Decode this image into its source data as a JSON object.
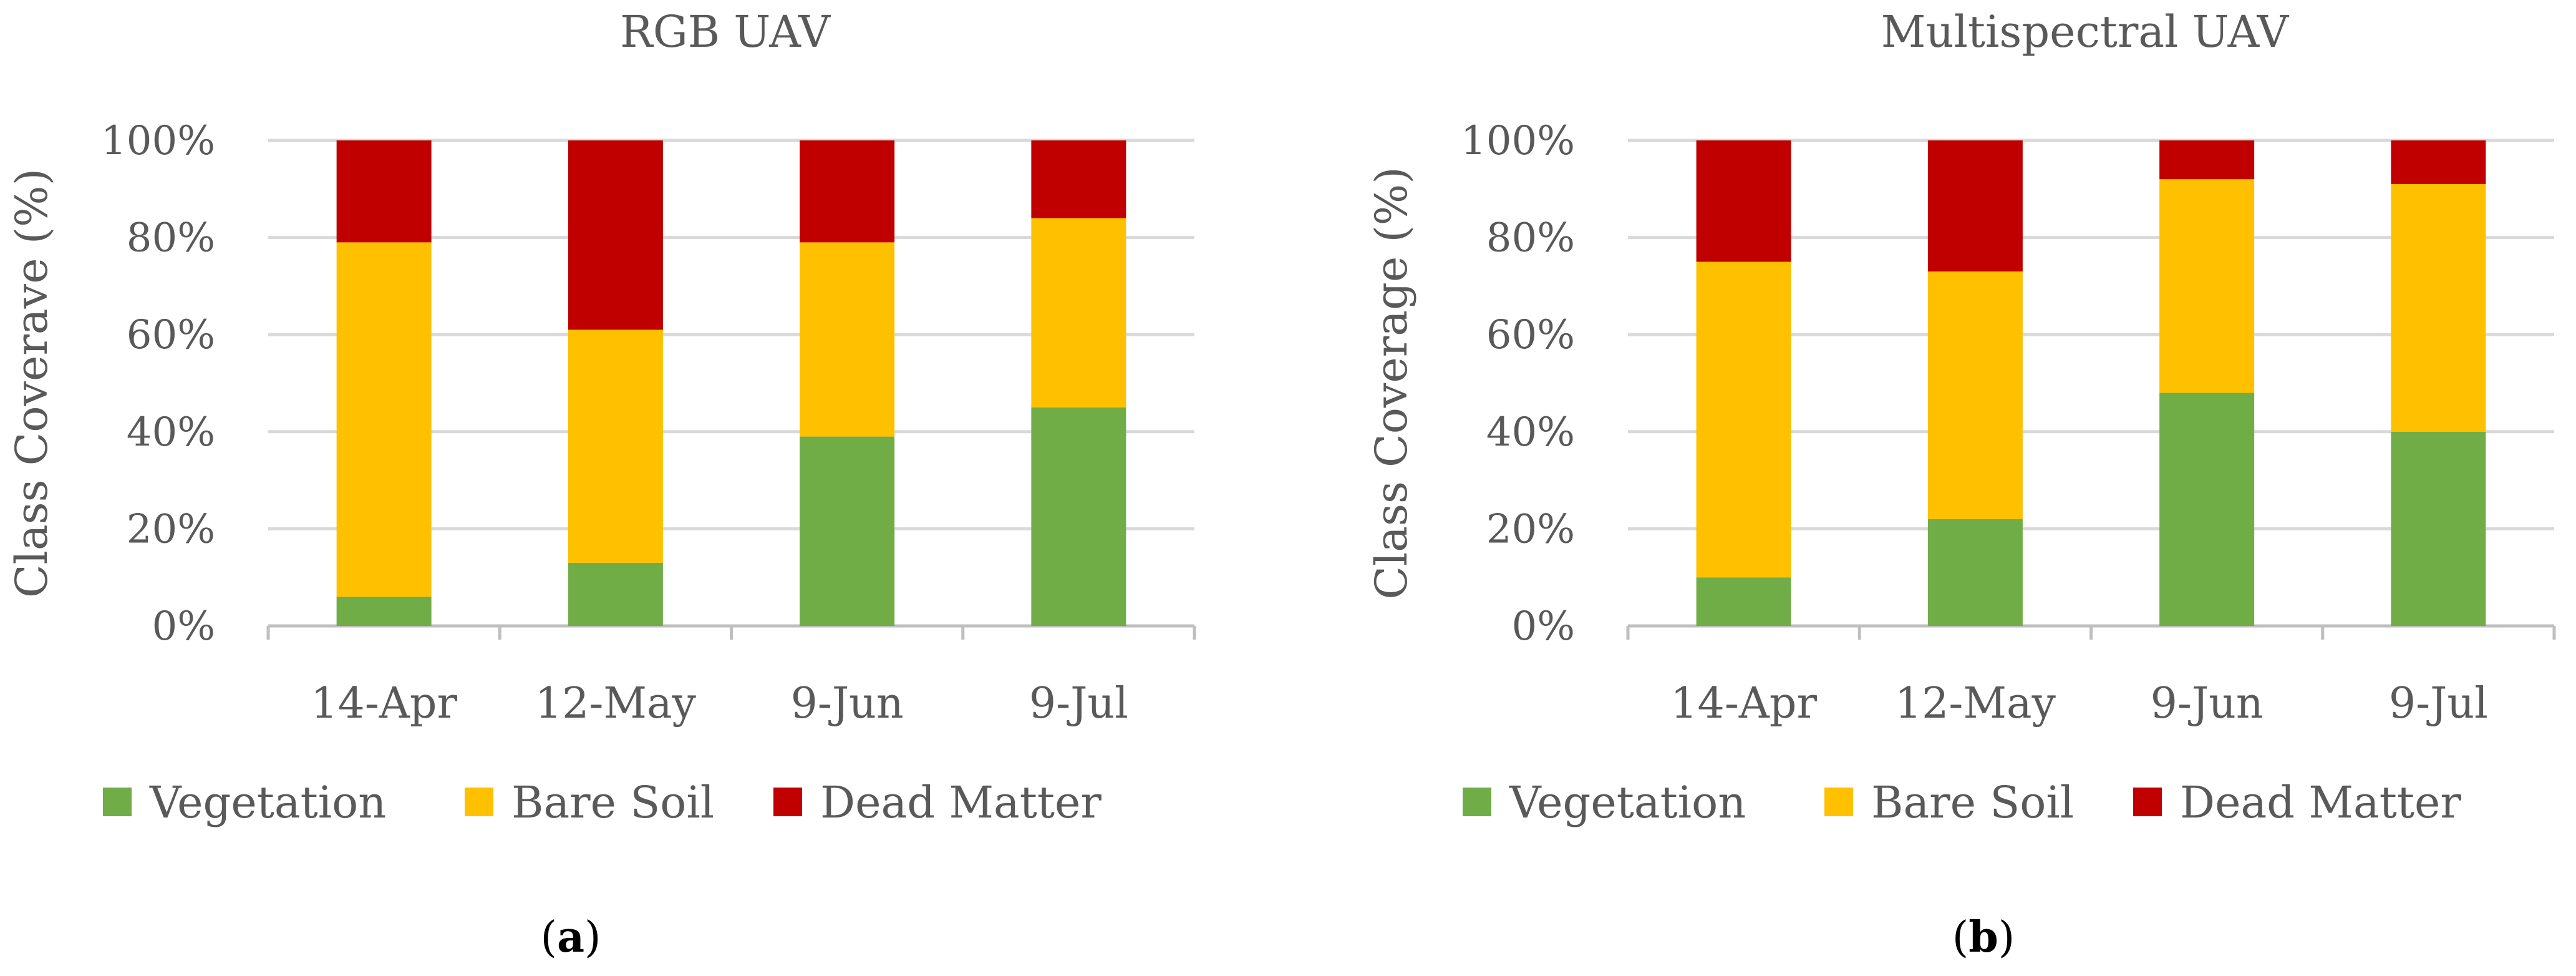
{
  "chart_data": [
    {
      "type": "bar",
      "stacked": true,
      "title": "RGB UAV",
      "ylabel": "Class Coverave (%)",
      "xlabel": "",
      "ylim": [
        0,
        100
      ],
      "yticks": [
        "0%",
        "20%",
        "40%",
        "60%",
        "80%",
        "100%"
      ],
      "categories": [
        "14-Apr",
        "12-May",
        "9-Jun",
        "9-Jul"
      ],
      "series": [
        {
          "name": "Vegetation",
          "color": "#70ad47",
          "values": [
            6,
            13,
            39,
            45
          ]
        },
        {
          "name": "Bare Soil",
          "color": "#ffc000",
          "values": [
            73,
            48,
            40,
            39
          ]
        },
        {
          "name": "Dead Matter",
          "color": "#c00000",
          "values": [
            21,
            39,
            21,
            16
          ]
        }
      ],
      "legend": "bottom",
      "caption_label": "a"
    },
    {
      "type": "bar",
      "stacked": true,
      "title": "Multispectral UAV",
      "ylabel": "Class Coverage (%)",
      "xlabel": "",
      "ylim": [
        0,
        100
      ],
      "yticks": [
        "0%",
        "20%",
        "40%",
        "60%",
        "80%",
        "100%"
      ],
      "categories": [
        "14-Apr",
        "12-May",
        "9-Jun",
        "9-Jul"
      ],
      "series": [
        {
          "name": "Vegetation",
          "color": "#70ad47",
          "values": [
            10,
            22,
            48,
            40
          ]
        },
        {
          "name": "Bare Soil",
          "color": "#ffc000",
          "values": [
            65,
            51,
            44,
            51
          ]
        },
        {
          "name": "Dead Matter",
          "color": "#c00000",
          "values": [
            25,
            27,
            8,
            9
          ]
        }
      ],
      "legend": "bottom",
      "caption_label": "b"
    }
  ]
}
